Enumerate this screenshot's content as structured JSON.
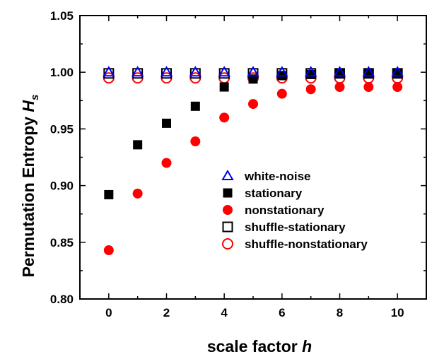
{
  "chart_data": {
    "type": "scatter",
    "xlabel": "scale factor",
    "xlabel_var": "h",
    "ylabel": "Permutation Entropy",
    "ylabel_var": "H",
    "ylabel_sub": "s",
    "xlim": [
      -1,
      11
    ],
    "ylim": [
      0.8,
      1.05
    ],
    "x_ticks": [
      "0",
      "2",
      "4",
      "6",
      "8",
      "10"
    ],
    "y_ticks": [
      "0.80",
      "0.85",
      "0.90",
      "0.95",
      "1.00",
      "1.05"
    ],
    "grid": false,
    "legend_position": "center-right",
    "x": [
      0,
      1,
      2,
      3,
      4,
      5,
      6,
      7,
      8,
      9,
      10
    ],
    "series": [
      {
        "name": "white-noise",
        "marker": "open-triangle",
        "color": "#0000ff",
        "values": [
          1.0,
          1.0,
          1.0,
          1.0,
          1.0,
          1.0,
          1.0,
          1.0,
          1.0,
          1.0,
          1.0
        ]
      },
      {
        "name": "stationary",
        "marker": "filled-square",
        "color": "#000000",
        "values": [
          0.892,
          0.936,
          0.955,
          0.97,
          0.987,
          0.994,
          0.997,
          0.998,
          0.999,
          0.999,
          0.999
        ]
      },
      {
        "name": "nonstationary",
        "marker": "filled-circle",
        "color": "#ff0000",
        "values": [
          0.843,
          0.893,
          0.92,
          0.939,
          0.96,
          0.972,
          0.981,
          0.985,
          0.987,
          0.987,
          0.987
        ]
      },
      {
        "name": "shuffle-stationary",
        "marker": "open-square",
        "color": "#000000",
        "values": [
          0.999,
          0.999,
          0.999,
          0.999,
          0.999,
          0.999,
          0.999,
          0.999,
          0.999,
          0.999,
          0.999
        ]
      },
      {
        "name": "shuffle-nonstationary",
        "marker": "open-circle",
        "color": "#ff0000",
        "values": [
          0.995,
          0.995,
          0.995,
          0.995,
          0.995,
          0.995,
          0.995,
          0.995,
          0.995,
          0.995,
          0.995
        ]
      }
    ]
  }
}
